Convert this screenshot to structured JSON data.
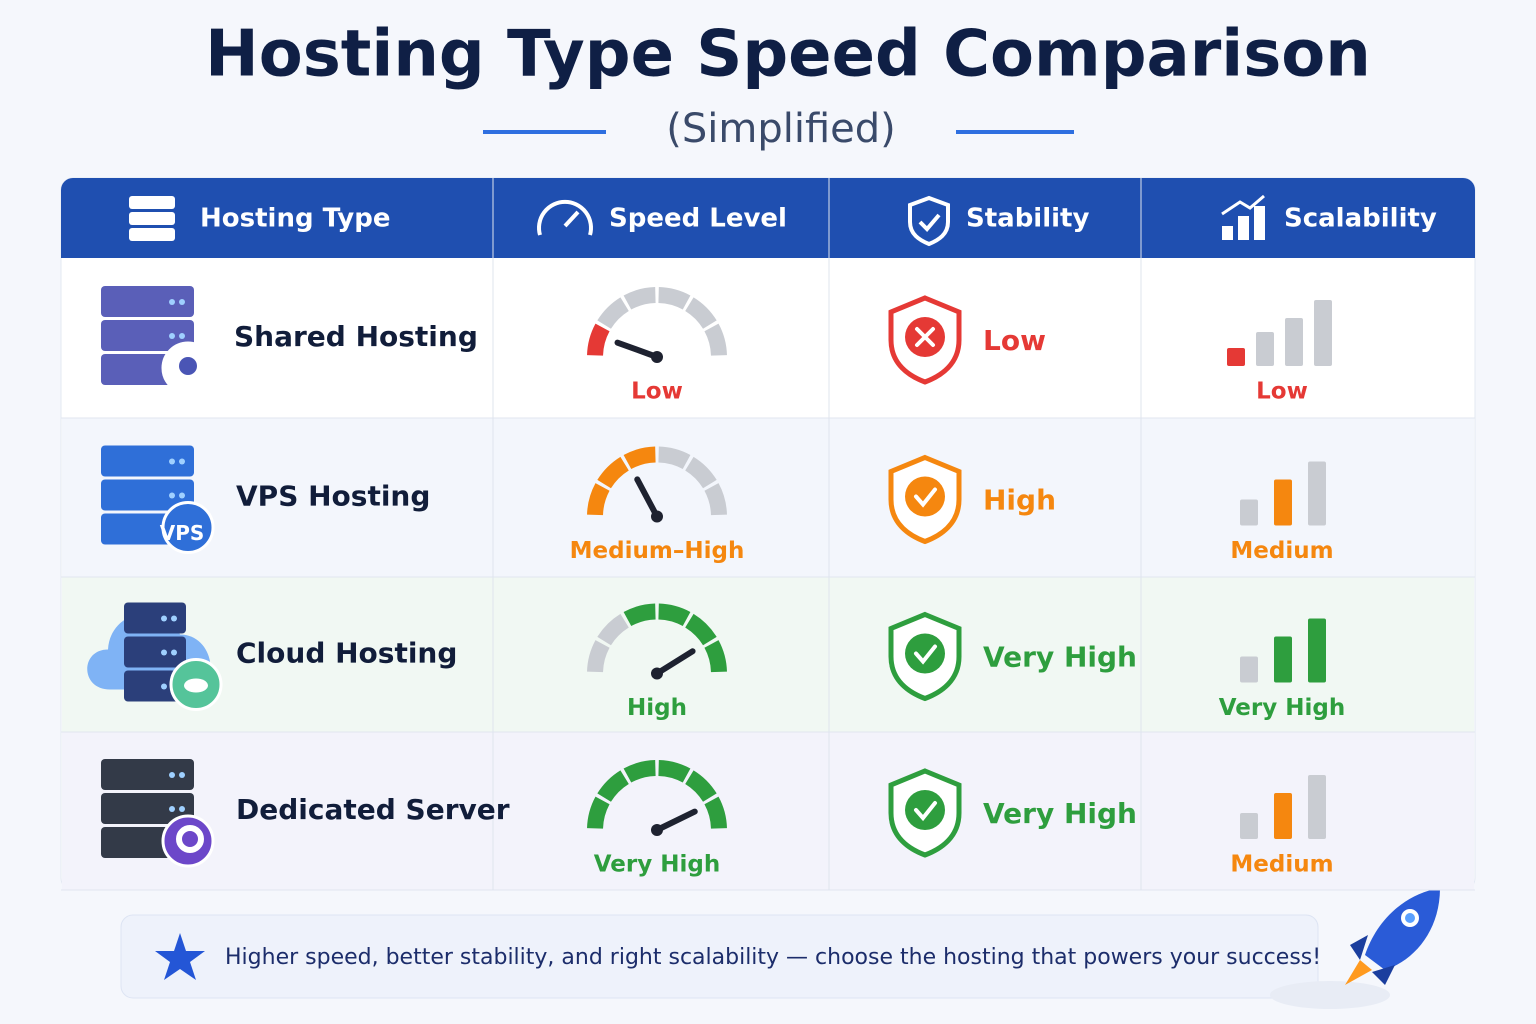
{
  "header": {
    "title": "Hosting Type Speed Comparison",
    "subtitle": "(Simplified)"
  },
  "table": {
    "columns": [
      "Hosting Type",
      "Speed Level",
      "Stability",
      "Scalability"
    ],
    "rows": [
      [
        "Shared Hosting",
        "Low",
        "Low",
        "Low"
      ],
      [
        "VPS Hosting",
        "Medium–High",
        "High",
        "Medium"
      ],
      [
        "Cloud Hosting",
        "High",
        "Very High",
        "Very High"
      ],
      [
        "Dedicated Server",
        "Very High",
        "Very High",
        "Medium"
      ]
    ]
  },
  "icons": {
    "vps_badge": "VPS"
  },
  "footer": {
    "note": "Higher speed, better stability, and right scalability — choose the hosting that powers your success!"
  }
}
